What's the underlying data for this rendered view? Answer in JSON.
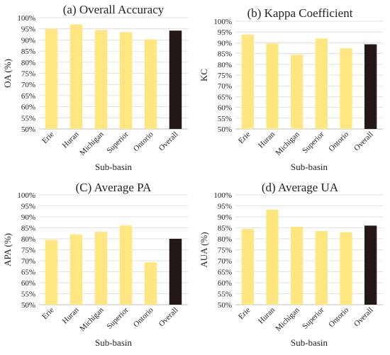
{
  "colors": {
    "subbasin_bar": "#FFE680",
    "overall_bar": "#231815",
    "gridline": "#D9D9D9",
    "axis": "#BFBFBF",
    "text": "#222222"
  },
  "chart_data": [
    {
      "type": "bar",
      "title": "(a) Overall Accuracy",
      "xlabel": "Sub-basin",
      "ylabel": "OA (%)",
      "ylim": [
        50,
        100
      ],
      "ytick_labels": [
        "50%",
        "55%",
        "60%",
        "65%",
        "70%",
        "75%",
        "80%",
        "85%",
        "90%",
        "95%",
        "100%"
      ],
      "categories": [
        "Erie",
        "Huran",
        "Michigan",
        "Superior",
        "Ontorio",
        "Overall"
      ],
      "values": [
        95.0,
        97.0,
        94.5,
        93.5,
        90.3,
        94.2
      ],
      "grid": true
    },
    {
      "type": "bar",
      "title": "(b) Kappa Coefficient",
      "xlabel": "Sub-basin",
      "ylabel": "KC",
      "ylim": [
        50,
        100
      ],
      "ytick_labels": [
        "50%",
        "55%",
        "60%",
        "65%",
        "70%",
        "75%",
        "80%",
        "85%",
        "90%",
        "95%",
        "100%"
      ],
      "categories": [
        "Erie",
        "Huran",
        "Michigan",
        "Superior",
        "Ontorio",
        "Overall"
      ],
      "values": [
        93.8,
        89.7,
        84.5,
        92.0,
        87.4,
        89.3
      ],
      "grid": true
    },
    {
      "type": "bar",
      "title": "(C) Average PA",
      "xlabel": "Sub-basin",
      "ylabel": "APA (%)",
      "ylim": [
        50,
        100
      ],
      "ytick_labels": [
        "50%",
        "55%",
        "60%",
        "65%",
        "70%",
        "75%",
        "80%",
        "85%",
        "90%",
        "95%",
        "100%"
      ],
      "categories": [
        "Erie",
        "Huran",
        "Michigan",
        "Superior",
        "Ontorio",
        "Overall"
      ],
      "values": [
        79.5,
        82.0,
        83.2,
        86.0,
        69.3,
        80.0
      ],
      "grid": true
    },
    {
      "type": "bar",
      "title": "(d) Average UA",
      "xlabel": "Sub-basin",
      "ylabel": "AUA (%)",
      "ylim": [
        50,
        100
      ],
      "ytick_labels": [
        "50%",
        "55%",
        "60%",
        "65%",
        "70%",
        "75%",
        "80%",
        "85%",
        "90%",
        "95%",
        "100%"
      ],
      "categories": [
        "Erie",
        "Huran",
        "Michigan",
        "Superior",
        "Ontorio",
        "Overall"
      ],
      "values": [
        84.5,
        93.3,
        85.5,
        83.5,
        83.0,
        86.0
      ],
      "grid": true
    }
  ]
}
